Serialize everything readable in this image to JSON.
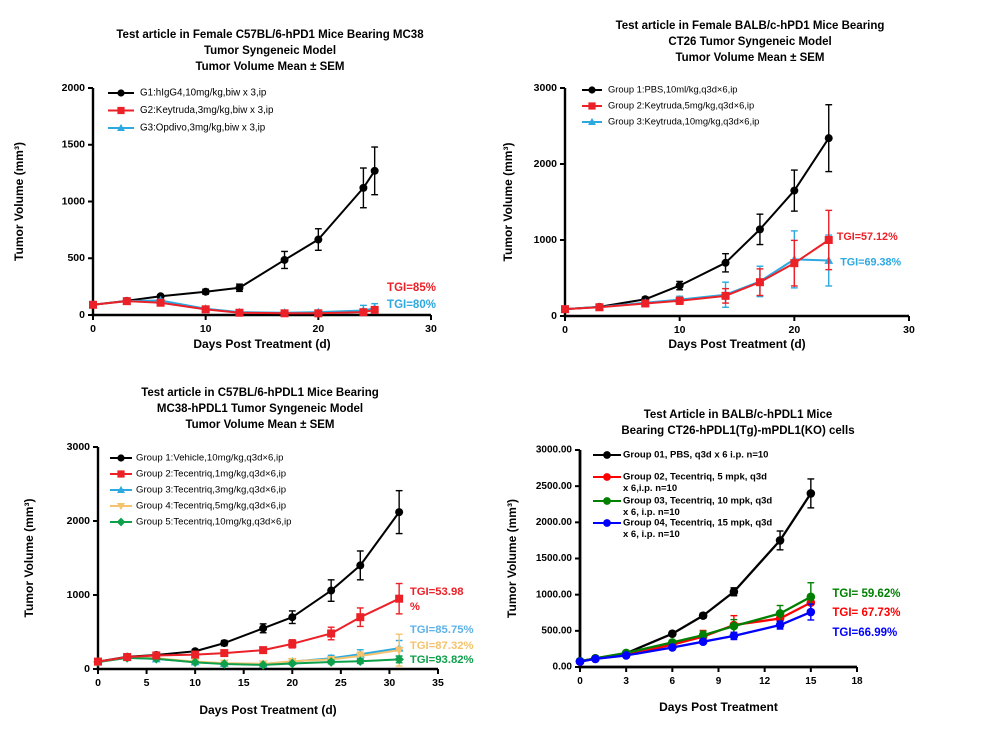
{
  "page": {
    "background": "#ffffff"
  },
  "chart_data": [
    {
      "type": "line",
      "title_lines": [
        "Test article in Female C57BL/6-hPD1 Mice Bearing MC38",
        "Tumor Syngeneic Model",
        "Tumor Volume Mean ± SEM"
      ],
      "xlabel": "Days Post Treatment (d)",
      "ylabel": "Tumor Volume (mm³)",
      "xlim": [
        0,
        30
      ],
      "ylim": [
        0,
        2000
      ],
      "xticks": [
        0,
        10,
        20,
        30
      ],
      "xtick_labels": [
        "0",
        "10",
        "20",
        "30"
      ],
      "yticks": [
        0,
        500,
        1000,
        1500,
        2000
      ],
      "ytick_labels": [
        "0",
        "500",
        "1000",
        "1500",
        "2000"
      ],
      "x": [
        0,
        3,
        6,
        10,
        13,
        17,
        20,
        24,
        25
      ],
      "series": [
        {
          "name_lines": [
            "G1:hIgG4,10mg/kg,biw x 3,ip"
          ],
          "color": "#000000",
          "marker": "circle",
          "values": [
            90,
            125,
            165,
            205,
            240,
            485,
            665,
            1120,
            1270
          ],
          "errors": [
            8,
            10,
            15,
            22,
            32,
            75,
            95,
            175,
            210
          ]
        },
        {
          "name_lines": [
            "G2:Keytruda,3mg/kg,biw x 3,ip"
          ],
          "color": "#EC2027",
          "marker": "square",
          "values": [
            90,
            122,
            108,
            50,
            20,
            15,
            15,
            25,
            45
          ],
          "errors": [
            8,
            8,
            12,
            8,
            5,
            5,
            5,
            12,
            18
          ]
        },
        {
          "name_lines": [
            "G3:Opdivo,3mg/kg,biw x 3,ip"
          ],
          "color": "#2CA9E1",
          "marker": "triangle-up",
          "values": [
            90,
            122,
            128,
            55,
            25,
            20,
            25,
            40,
            60
          ],
          "errors": [
            8,
            8,
            12,
            8,
            5,
            5,
            5,
            45,
            40
          ]
        }
      ],
      "annotations": [
        {
          "lines": [
            "TGI=85%"
          ],
          "color": "#EC2027",
          "x": 26.1,
          "y": 238
        },
        {
          "lines": [
            "TGI=80%"
          ],
          "color": "#2CA9E1",
          "x": 26.1,
          "y": 88
        }
      ]
    },
    {
      "type": "line",
      "title_lines": [
        "Test article in Female BALB/c-hPD1 Mice Bearing",
        "CT26 Tumor Syngeneic Model",
        "Tumor Volume Mean ± SEM"
      ],
      "xlabel": "Days Post Treatment (d)",
      "ylabel": "Tumor Volume (mm³)",
      "xlim": [
        0,
        30
      ],
      "ylim": [
        0,
        3000
      ],
      "xticks": [
        0,
        10,
        20,
        30
      ],
      "xtick_labels": [
        "0",
        "10",
        "20",
        "30"
      ],
      "yticks": [
        0,
        1000,
        2000,
        3000
      ],
      "ytick_labels": [
        "0",
        "1000",
        "2000",
        "3000"
      ],
      "x": [
        0,
        3,
        7,
        10,
        14,
        17,
        20,
        23
      ],
      "series": [
        {
          "name_lines": [
            "Group 1:PBS,10ml/kg,q3d×6,ip"
          ],
          "color": "#000000",
          "marker": "circle",
          "values": [
            90,
            120,
            220,
            400,
            700,
            1140,
            1650,
            2340
          ],
          "errors": [
            12,
            15,
            30,
            55,
            120,
            200,
            270,
            440
          ]
        },
        {
          "name_lines": [
            "Group 2:Keytruda,5mg/kg,q3d×6,ip"
          ],
          "color": "#EC2027",
          "marker": "square",
          "values": [
            90,
            115,
            165,
            200,
            265,
            445,
            695,
            1000
          ],
          "errors": [
            10,
            12,
            28,
            45,
            95,
            175,
            300,
            390
          ]
        },
        {
          "name_lines": [
            "Group 3:Keytruda,10mg/kg,q3d×6,ip"
          ],
          "color": "#2CA9E1",
          "marker": "triangle-up",
          "values": [
            90,
            118,
            175,
            215,
            280,
            455,
            745,
            730
          ],
          "errors": [
            10,
            12,
            28,
            45,
            165,
            200,
            375,
            335
          ]
        }
      ],
      "annotations": [
        {
          "lines": [
            "TGI=57.12%"
          ],
          "color": "#EC2027",
          "x": 23.7,
          "y": 1040
        },
        {
          "lines": [
            "TGI=69.38%"
          ],
          "color": "#2CA9E1",
          "x": 24.0,
          "y": 700
        }
      ]
    },
    {
      "type": "line",
      "title_lines": [
        "Test article in C57BL/6-hPDL1 Mice Bearing",
        "MC38-hPDL1 Tumor Syngeneic Model",
        "Tumor Volume Mean ± SEM"
      ],
      "xlabel": "Days Post Treatment (d)",
      "ylabel": "Tumor Volume (mm³)",
      "xlim": [
        0,
        35
      ],
      "ylim": [
        0,
        3000
      ],
      "xticks": [
        0,
        5,
        10,
        15,
        20,
        25,
        30,
        35
      ],
      "xtick_labels": [
        "0",
        "5",
        "10",
        "15",
        "20",
        "25",
        "30",
        "35"
      ],
      "yticks": [
        0,
        1000,
        2000,
        3000
      ],
      "ytick_labels": [
        "0",
        "1000",
        "2000",
        "3000"
      ],
      "x": [
        0,
        3,
        6,
        10,
        13,
        17,
        20,
        24,
        27,
        31
      ],
      "series": [
        {
          "name_lines": [
            "Group 1:Vehicle,10mg/kg,q3d×6,ip"
          ],
          "color": "#000000",
          "marker": "circle",
          "values": [
            100,
            165,
            190,
            240,
            350,
            550,
            700,
            1060,
            1400,
            2120
          ],
          "errors": [
            12,
            15,
            18,
            25,
            35,
            60,
            85,
            145,
            195,
            290
          ]
        },
        {
          "name_lines": [
            "Group 2:Tecentriq,1mg/kg,q3d×6,ip"
          ],
          "color": "#EC2027",
          "marker": "square",
          "values": [
            100,
            162,
            183,
            195,
            215,
            255,
            340,
            480,
            700,
            950
          ],
          "errors": [
            10,
            12,
            15,
            18,
            22,
            35,
            55,
            85,
            125,
            205
          ]
        },
        {
          "name_lines": [
            "Group 3:Tecentriq,3mg/kg,q3d×6,ip"
          ],
          "color": "#2CA9E1",
          "marker": "triangle-up",
          "values": [
            95,
            152,
            135,
            95,
            75,
            65,
            100,
            145,
            200,
            280
          ],
          "errors": [
            10,
            12,
            15,
            12,
            10,
            12,
            22,
            40,
            60,
            105
          ]
        },
        {
          "name_lines": [
            "Group 4:Tecentriq,5mg/kg,q3d×6,ip"
          ],
          "color": "#F5C36D",
          "marker": "triangle-down",
          "values": [
            95,
            155,
            145,
            100,
            80,
            70,
            105,
            130,
            175,
            255
          ],
          "errors": [
            10,
            12,
            15,
            12,
            10,
            12,
            22,
            35,
            55,
            215
          ]
        },
        {
          "name_lines": [
            "Group 5:Tecentriq,10mg/kg,q3d×6,ip"
          ],
          "color": "#0FA04C",
          "marker": "diamond",
          "values": [
            95,
            150,
            138,
            90,
            68,
            55,
            75,
            95,
            105,
            130
          ],
          "errors": [
            10,
            12,
            12,
            10,
            10,
            10,
            15,
            25,
            30,
            45
          ]
        }
      ],
      "annotations": [
        {
          "lines": [
            "TGI=53.98",
            "%"
          ],
          "color": "#EC2027",
          "x": 32.1,
          "y": 1040
        },
        {
          "lines": [
            "TGI=85.75%"
          ],
          "color": "#5FB2E8",
          "x": 32.1,
          "y": 527
        },
        {
          "lines": [
            "TGI=87.32%"
          ],
          "color": "#F5C36D",
          "x": 32.1,
          "y": 311
        },
        {
          "lines": [
            "TGI=93.82%"
          ],
          "color": "#0FA04C",
          "x": 32.1,
          "y": 122
        }
      ]
    },
    {
      "type": "line",
      "title_lines": [
        "Test Article in BALB/c-hPDL1 Mice",
        "Bearing CT26-hPDL1(Tg)-mPDL1(KO) cells"
      ],
      "xlabel": "Days Post Treatment",
      "ylabel": "Tumor Volume  (mm³)",
      "xlim": [
        0,
        18
      ],
      "ylim": [
        0,
        3000
      ],
      "xticks": [
        0,
        3,
        6,
        9,
        12,
        15,
        18
      ],
      "xtick_labels": [
        "0",
        "3",
        "6",
        "9",
        "12",
        "15",
        "18"
      ],
      "yticks": [
        0,
        500,
        1000,
        1500,
        2000,
        2500,
        3000
      ],
      "ytick_labels": [
        "0.00",
        "500.00",
        "1000.00",
        "1500.00",
        "2000.00",
        "2500.00",
        "3000.00"
      ],
      "x": [
        0,
        1,
        3,
        6,
        8,
        10,
        13,
        15
      ],
      "series": [
        {
          "name_lines": [
            "Group 01, PBS, q3d x 6 i.p. n=10"
          ],
          "color": "#000000",
          "marker": "circle",
          "values": [
            80,
            120,
            190,
            460,
            710,
            1040,
            1750,
            2400
          ],
          "errors": [
            8,
            10,
            15,
            25,
            35,
            55,
            130,
            200
          ]
        },
        {
          "name_lines": [
            "Group 02, Tecentriq, 5 mpk, q3d",
            "x 6,i.p. n=10"
          ],
          "color": "#FF0000",
          "marker": "circle",
          "values": [
            75,
            115,
            165,
            310,
            420,
            580,
            670,
            890
          ],
          "errors": [
            8,
            10,
            15,
            25,
            85,
            130,
            80,
            100
          ]
        },
        {
          "name_lines": [
            "Group 03, Tecentriq, 10 mpk, q3d",
            "x 6, i.p. n=10"
          ],
          "color": "#008000",
          "marker": "circle",
          "values": [
            80,
            120,
            195,
            340,
            440,
            565,
            740,
            970
          ],
          "errors": [
            8,
            10,
            15,
            25,
            55,
            90,
            110,
            195
          ]
        },
        {
          "name_lines": [
            "Group 04, Tecentriq, 15 mpk, q3d",
            "x 6, i.p. n=10"
          ],
          "color": "#0000FF",
          "marker": "circle",
          "values": [
            75,
            112,
            160,
            270,
            350,
            430,
            580,
            760
          ],
          "errors": [
            8,
            10,
            12,
            20,
            30,
            50,
            55,
            110
          ]
        }
      ],
      "annotations": [
        {
          "lines": [
            "TGI= 59.62%"
          ],
          "color": "#008000",
          "x": 16.4,
          "y": 1010
        },
        {
          "lines": [
            "TGI= 67.73%"
          ],
          "color": "#FF0000",
          "x": 16.4,
          "y": 750
        },
        {
          "lines": [
            "TGI=66.99%"
          ],
          "color": "#0000FF",
          "x": 16.4,
          "y": 470
        }
      ]
    }
  ]
}
